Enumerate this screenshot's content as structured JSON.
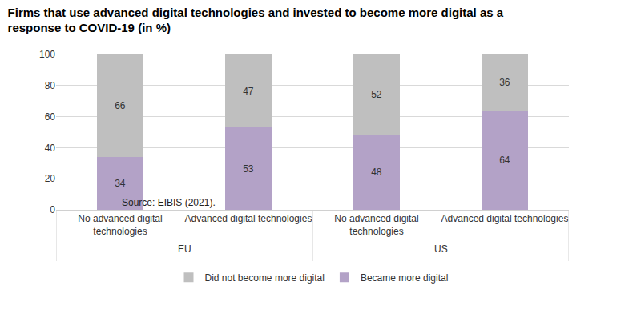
{
  "chart_data": {
    "type": "bar",
    "title": "Firms that use advanced digital technologies and invested to become more digital as a response to COVID-19 (in %)",
    "categories": [
      "No advanced digital technologies",
      "Advanced digital technologies",
      "No advanced digital technologies",
      "Advanced digital technologies"
    ],
    "groups": [
      "EU",
      "EU",
      "US",
      "US"
    ],
    "series": [
      {
        "name": "Became more digital",
        "color": "#b3a2c7",
        "values": [
          34,
          53,
          48,
          64
        ]
      },
      {
        "name": "Did not become more digital",
        "color": "#bfbfbf",
        "values": [
          66,
          47,
          52,
          36
        ]
      }
    ],
    "ylim": [
      0,
      100
    ],
    "yticks": [
      0,
      20,
      40,
      60,
      80,
      100
    ],
    "grid": true,
    "stacked": true,
    "data_labels": true,
    "legend": "bottom",
    "source": "Source: EIBIS (2021)."
  }
}
